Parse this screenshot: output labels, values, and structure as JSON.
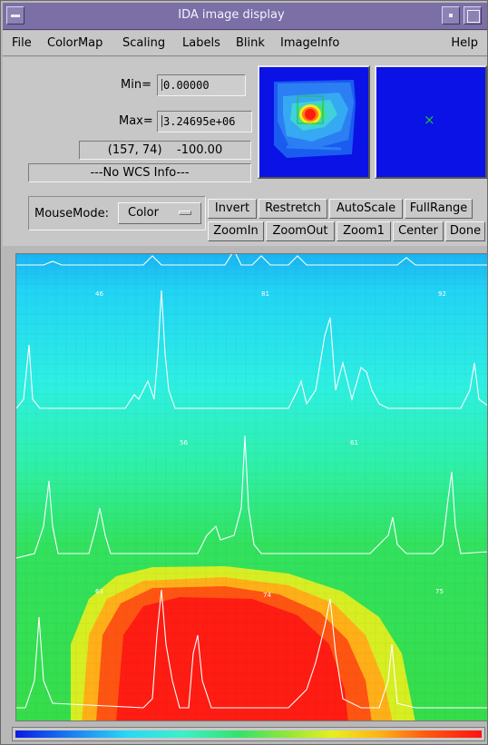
{
  "window": {
    "title": "IDA image display"
  },
  "menu": {
    "file": "File",
    "colormap": "ColorMap",
    "scaling": "Scaling",
    "labels": "Labels",
    "blink": "Blink",
    "imageinfo": "ImageInfo",
    "help": "Help"
  },
  "scale": {
    "min_label": "Min=",
    "min_value": "0.00000",
    "max_label": "Max=",
    "max_value": "3.24695e+06"
  },
  "cursor_readout": {
    "coords": "(157, 74)",
    "value": "-100.00"
  },
  "wcs_info": "---No WCS Info---",
  "mouse_mode": {
    "label": "MouseMode:",
    "value": "Color"
  },
  "buttons": {
    "invert": "Invert",
    "restretch": "Restretch",
    "autoscale": "AutoScale",
    "fullrange": "FullRange",
    "zoomin": "ZoomIn",
    "zoomout": "ZoomOut",
    "zoom1": "Zoom1",
    "center": "Center",
    "done": "Done"
  },
  "image_labels": [
    "46",
    "81",
    "92",
    "56",
    "61",
    "63",
    "74",
    "75"
  ],
  "colors": {
    "title_bar": "#7b6fa6",
    "panel": "#c7c7c7",
    "pan_background": "#0a12e6",
    "mag_cursor": "#1fbf3a",
    "trace": "#ffffff"
  },
  "icons": {
    "window_menu": "window-menu-icon",
    "minimize": "minimize-icon",
    "maximize": "maximize-icon",
    "mag_cursor": "cross-icon"
  }
}
